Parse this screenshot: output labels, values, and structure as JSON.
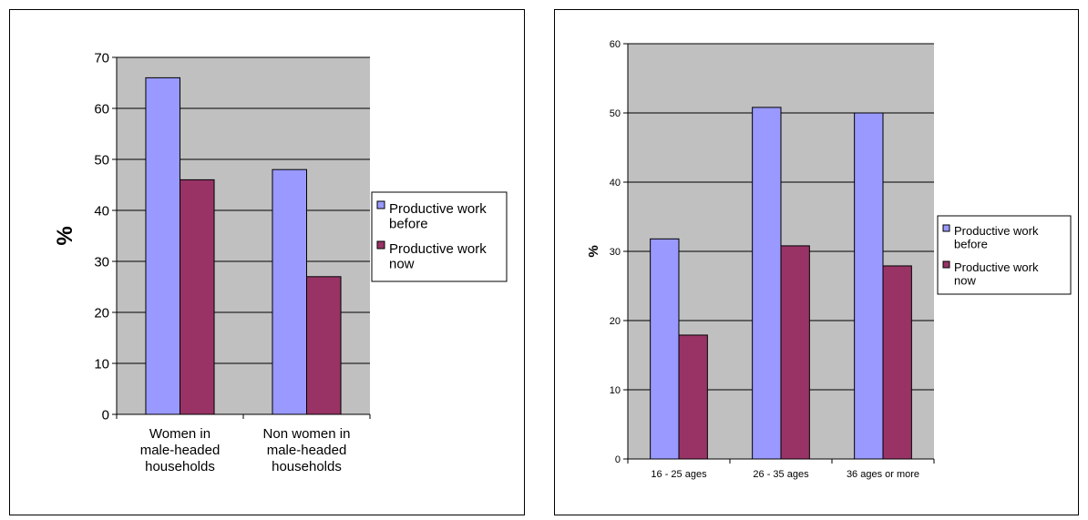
{
  "colors": {
    "before": "#9999ff",
    "now": "#993366",
    "plot_bg": "#c0c0c0"
  },
  "chart_data": [
    {
      "type": "bar",
      "categories": [
        "Women in male-headed households",
        "Non women in male-headed households"
      ],
      "category_lines": [
        [
          "Women in",
          "male-headed",
          "households"
        ],
        [
          "Non women in",
          "male-headed",
          "households"
        ]
      ],
      "series": [
        {
          "name": "Productive work before",
          "legend_lines": [
            "Productive work",
            "before"
          ],
          "values": [
            66,
            48
          ]
        },
        {
          "name": "Productive work now",
          "legend_lines": [
            "Productive work",
            "now"
          ],
          "values": [
            46,
            27
          ]
        }
      ],
      "ylabel": "%",
      "ylim": [
        0,
        70
      ],
      "yticks": [
        "0",
        "10",
        "20",
        "30",
        "40",
        "50",
        "60",
        "70"
      ],
      "grid": true,
      "legend": "right"
    },
    {
      "type": "bar",
      "categories": [
        "16 - 25 ages",
        "26 - 35 ages",
        "36 ages or more"
      ],
      "series": [
        {
          "name": "Productive work before",
          "legend_lines": [
            "Productive work",
            "before"
          ],
          "values": [
            31.8,
            50.8,
            50
          ]
        },
        {
          "name": "Productive work now",
          "legend_lines": [
            "Productive work",
            "now"
          ],
          "values": [
            17.9,
            30.8,
            27.9
          ]
        }
      ],
      "ylabel": "%",
      "ylim": [
        0,
        60
      ],
      "yticks": [
        "0",
        "10",
        "20",
        "30",
        "40",
        "50",
        "60"
      ],
      "grid": true,
      "legend": "right"
    }
  ]
}
